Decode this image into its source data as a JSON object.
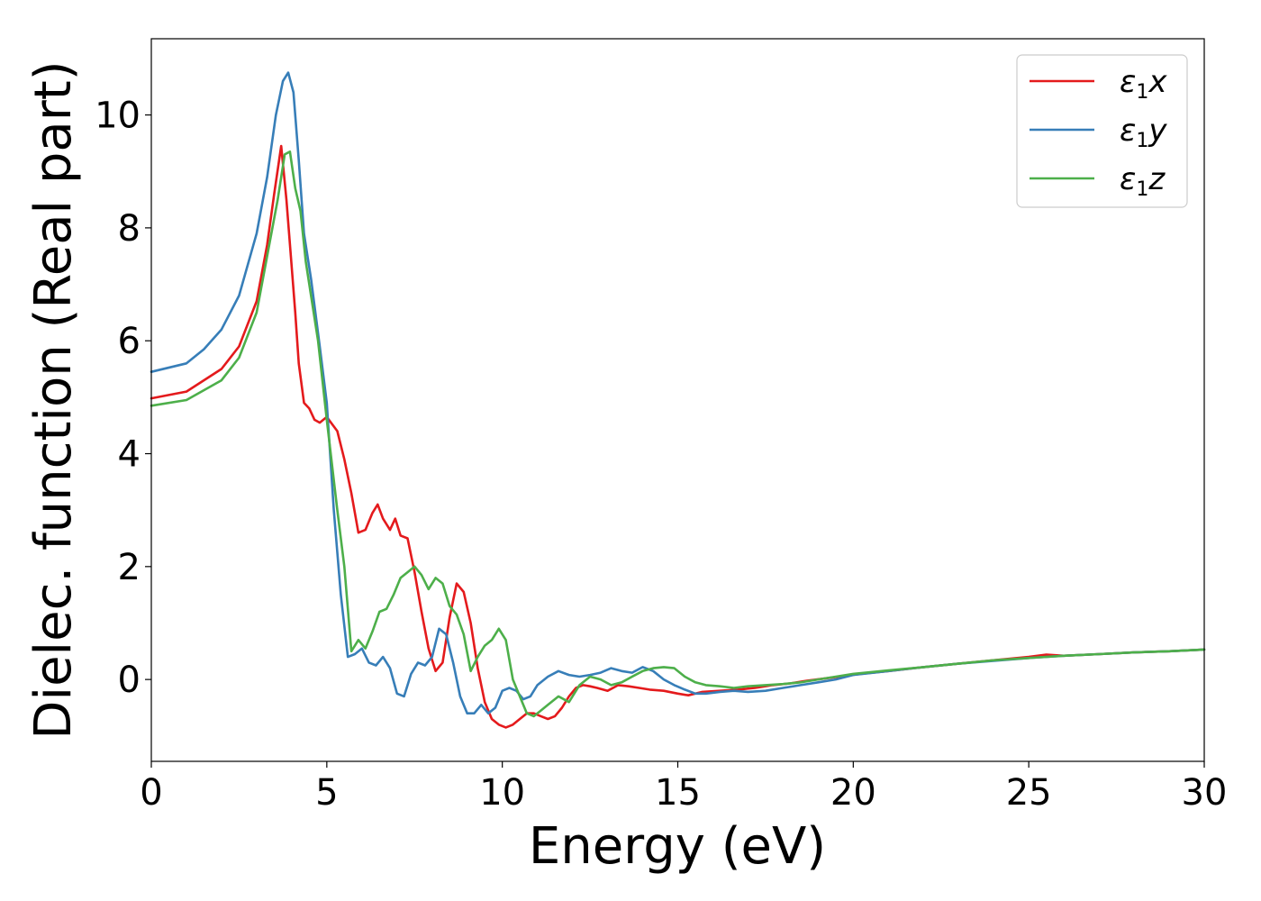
{
  "chart_data": {
    "type": "line",
    "xlabel": "Energy (eV)",
    "ylabel": "Dielec. function (Real part)",
    "xlim": [
      0,
      30
    ],
    "ylim": [
      -1.45,
      11.35
    ],
    "xticks": [
      "0",
      "5",
      "10",
      "15",
      "20",
      "25",
      "30"
    ],
    "yticks": [
      "0",
      "2",
      "4",
      "6",
      "8",
      "10"
    ],
    "grid": false,
    "legend_position": "top-right",
    "series": [
      {
        "name": "ε₁x",
        "legend_base": "ε",
        "legend_sub": "1",
        "legend_var": "x",
        "color": "#e41a1c",
        "x": [
          0,
          1,
          2,
          2.5,
          3,
          3.3,
          3.5,
          3.7,
          3.85,
          4.0,
          4.1,
          4.2,
          4.35,
          4.5,
          4.65,
          4.8,
          5.0,
          5.3,
          5.5,
          5.7,
          5.9,
          6.1,
          6.3,
          6.45,
          6.6,
          6.8,
          6.95,
          7.1,
          7.3,
          7.5,
          7.7,
          7.9,
          8.1,
          8.3,
          8.5,
          8.7,
          8.9,
          9.1,
          9.3,
          9.5,
          9.7,
          9.9,
          10.1,
          10.3,
          10.5,
          10.7,
          10.9,
          11.1,
          11.3,
          11.5,
          11.7,
          11.9,
          12.1,
          12.3,
          12.5,
          12.7,
          13.0,
          13.3,
          13.6,
          13.9,
          14.2,
          14.6,
          15.0,
          15.3,
          15.7,
          16.2,
          16.7,
          17.2,
          17.7,
          18.2,
          18.7,
          19.2,
          19.7,
          20.2,
          21,
          22,
          23,
          24,
          25,
          25.5,
          26,
          27,
          28,
          29,
          30
        ],
        "y": [
          4.98,
          5.1,
          5.5,
          5.9,
          6.7,
          7.7,
          8.6,
          9.45,
          8.5,
          7.3,
          6.5,
          5.6,
          4.9,
          4.8,
          4.6,
          4.55,
          4.65,
          4.4,
          3.9,
          3.3,
          2.6,
          2.65,
          2.95,
          3.1,
          2.85,
          2.65,
          2.85,
          2.55,
          2.5,
          1.9,
          1.2,
          0.55,
          0.15,
          0.3,
          1.1,
          1.7,
          1.55,
          1.0,
          0.2,
          -0.4,
          -0.7,
          -0.8,
          -0.85,
          -0.8,
          -0.7,
          -0.6,
          -0.6,
          -0.65,
          -0.7,
          -0.65,
          -0.5,
          -0.3,
          -0.15,
          -0.1,
          -0.12,
          -0.15,
          -0.2,
          -0.1,
          -0.12,
          -0.15,
          -0.18,
          -0.2,
          -0.25,
          -0.28,
          -0.22,
          -0.2,
          -0.18,
          -0.15,
          -0.1,
          -0.07,
          -0.02,
          0.02,
          0.06,
          0.1,
          0.15,
          0.22,
          0.28,
          0.34,
          0.4,
          0.44,
          0.42,
          0.45,
          0.48,
          0.5,
          0.53
        ]
      },
      {
        "name": "ε₁y",
        "legend_base": "ε",
        "legend_sub": "1",
        "legend_var": "y",
        "color": "#377eb8",
        "x": [
          0,
          1,
          1.5,
          2,
          2.5,
          3,
          3.3,
          3.55,
          3.75,
          3.9,
          4.05,
          4.2,
          4.35,
          4.55,
          4.8,
          5.0,
          5.2,
          5.4,
          5.6,
          5.8,
          6.0,
          6.2,
          6.4,
          6.6,
          6.8,
          7.0,
          7.2,
          7.4,
          7.6,
          7.8,
          8.0,
          8.2,
          8.4,
          8.6,
          8.8,
          9.0,
          9.2,
          9.4,
          9.6,
          9.8,
          10.0,
          10.2,
          10.4,
          10.6,
          10.8,
          11.0,
          11.3,
          11.6,
          11.9,
          12.2,
          12.5,
          12.8,
          13.1,
          13.4,
          13.7,
          14.0,
          14.3,
          14.6,
          14.9,
          15.2,
          15.5,
          15.8,
          16.2,
          16.6,
          17.0,
          17.5,
          18.0,
          18.5,
          19.0,
          19.5,
          20,
          21,
          22,
          23,
          24,
          25,
          26,
          27,
          28,
          29,
          30
        ],
        "y": [
          5.45,
          5.6,
          5.85,
          6.2,
          6.8,
          7.9,
          8.9,
          10.0,
          10.6,
          10.75,
          10.4,
          9.2,
          7.9,
          7.1,
          5.9,
          4.9,
          3.0,
          1.5,
          0.4,
          0.45,
          0.55,
          0.3,
          0.25,
          0.4,
          0.2,
          -0.25,
          -0.3,
          0.1,
          0.3,
          0.25,
          0.4,
          0.9,
          0.8,
          0.3,
          -0.3,
          -0.6,
          -0.6,
          -0.45,
          -0.6,
          -0.5,
          -0.2,
          -0.15,
          -0.2,
          -0.35,
          -0.3,
          -0.1,
          0.05,
          0.15,
          0.08,
          0.05,
          0.08,
          0.12,
          0.2,
          0.15,
          0.12,
          0.22,
          0.15,
          0.0,
          -0.1,
          -0.18,
          -0.25,
          -0.25,
          -0.22,
          -0.2,
          -0.22,
          -0.2,
          -0.15,
          -0.1,
          -0.05,
          0.0,
          0.08,
          0.15,
          0.22,
          0.28,
          0.33,
          0.38,
          0.42,
          0.45,
          0.48,
          0.5,
          0.53
        ]
      },
      {
        "name": "ε₁z",
        "legend_base": "ε",
        "legend_sub": "1",
        "legend_var": "z",
        "color": "#4daf4a",
        "x": [
          0,
          1,
          2,
          2.5,
          3,
          3.3,
          3.6,
          3.8,
          3.95,
          4.1,
          4.25,
          4.4,
          4.55,
          4.75,
          5.0,
          5.3,
          5.5,
          5.7,
          5.9,
          6.1,
          6.3,
          6.5,
          6.7,
          6.9,
          7.1,
          7.3,
          7.5,
          7.7,
          7.9,
          8.1,
          8.3,
          8.5,
          8.7,
          8.9,
          9.1,
          9.3,
          9.5,
          9.7,
          9.9,
          10.1,
          10.3,
          10.5,
          10.7,
          10.9,
          11.1,
          11.3,
          11.6,
          11.9,
          12.2,
          12.5,
          12.8,
          13.1,
          13.4,
          13.7,
          14.0,
          14.3,
          14.6,
          14.9,
          15.2,
          15.5,
          15.8,
          16.2,
          16.6,
          17.0,
          17.5,
          18.0,
          18.5,
          19.0,
          19.5,
          20,
          21,
          22,
          23,
          24,
          25,
          26,
          27,
          28,
          29,
          30
        ],
        "y": [
          4.85,
          4.95,
          5.3,
          5.7,
          6.5,
          7.5,
          8.5,
          9.3,
          9.35,
          8.7,
          8.3,
          7.4,
          6.8,
          6.0,
          4.6,
          3.0,
          2.0,
          0.5,
          0.7,
          0.55,
          0.85,
          1.2,
          1.25,
          1.5,
          1.8,
          1.9,
          2.0,
          1.85,
          1.6,
          1.8,
          1.7,
          1.3,
          1.15,
          0.8,
          0.15,
          0.4,
          0.6,
          0.7,
          0.9,
          0.7,
          0.0,
          -0.3,
          -0.6,
          -0.65,
          -0.55,
          -0.45,
          -0.3,
          -0.4,
          -0.1,
          0.05,
          0.0,
          -0.1,
          -0.05,
          0.05,
          0.15,
          0.2,
          0.22,
          0.2,
          0.05,
          -0.05,
          -0.1,
          -0.12,
          -0.15,
          -0.12,
          -0.1,
          -0.08,
          -0.05,
          0.0,
          0.05,
          0.1,
          0.16,
          0.22,
          0.28,
          0.34,
          0.38,
          0.42,
          0.45,
          0.48,
          0.5,
          0.53
        ]
      }
    ]
  }
}
